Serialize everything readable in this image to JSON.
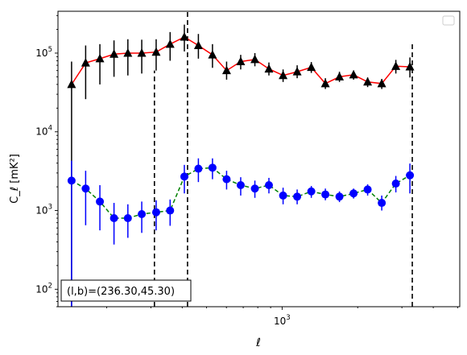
{
  "chart_data": {
    "type": "scatter",
    "xlabel": "ℓ",
    "ylabel": "C_ℓ  [mK²]",
    "xscale": "log",
    "yscale": "log",
    "xlim": [
      128,
      5100
    ],
    "ylim": [
      60,
      340000
    ],
    "x_major_ticks": [
      {
        "value": 1000,
        "base": "10",
        "exp": "3"
      }
    ],
    "y_major_ticks": [
      {
        "value": 100,
        "base": "10",
        "exp": "2"
      },
      {
        "value": 1000,
        "base": "10",
        "exp": "3"
      },
      {
        "value": 10000,
        "base": "10",
        "exp": "4"
      },
      {
        "value": 100000,
        "base": "10",
        "exp": "5"
      }
    ],
    "vertical_lines": [
      {
        "x": 310,
        "y_top": 60000
      },
      {
        "x": 420,
        "y_top": 340000
      },
      {
        "x": 3300,
        "y_top": 140000
      }
    ],
    "series": [
      {
        "marker": "triangle",
        "marker_color": "#000000",
        "line_color": "#ff0000",
        "line_style": "solid",
        "errorbar_color": "#000000",
        "points": [
          {
            "x": 145,
            "y": 40000,
            "lo": 60,
            "hi": 78000
          },
          {
            "x": 165,
            "y": 75000,
            "lo": 26000,
            "hi": 125000
          },
          {
            "x": 188,
            "y": 85000,
            "lo": 40000,
            "hi": 130000
          },
          {
            "x": 214,
            "y": 97000,
            "lo": 50000,
            "hi": 145000
          },
          {
            "x": 243,
            "y": 100000,
            "lo": 52000,
            "hi": 150000
          },
          {
            "x": 276,
            "y": 100000,
            "lo": 55000,
            "hi": 148000
          },
          {
            "x": 315,
            "y": 103000,
            "lo": 60000,
            "hi": 150000
          },
          {
            "x": 358,
            "y": 130000,
            "lo": 80000,
            "hi": 185000
          },
          {
            "x": 408,
            "y": 160000,
            "lo": 105000,
            "hi": 230000
          },
          {
            "x": 464,
            "y": 125000,
            "lo": 85000,
            "hi": 175000
          },
          {
            "x": 528,
            "y": 95000,
            "lo": 65000,
            "hi": 130000
          },
          {
            "x": 601,
            "y": 60000,
            "lo": 46000,
            "hi": 78000
          },
          {
            "x": 684,
            "y": 78000,
            "lo": 62000,
            "hi": 95000
          },
          {
            "x": 779,
            "y": 83000,
            "lo": 68000,
            "hi": 100000
          },
          {
            "x": 886,
            "y": 63000,
            "lo": 52000,
            "hi": 76000
          },
          {
            "x": 1009,
            "y": 52000,
            "lo": 43000,
            "hi": 62000
          },
          {
            "x": 1148,
            "y": 58000,
            "lo": 48000,
            "hi": 70000
          },
          {
            "x": 1307,
            "y": 66000,
            "lo": 56000,
            "hi": 77000
          },
          {
            "x": 1487,
            "y": 41000,
            "lo": 35000,
            "hi": 48000
          },
          {
            "x": 1692,
            "y": 50000,
            "lo": 43000,
            "hi": 58000
          },
          {
            "x": 1926,
            "y": 53000,
            "lo": 46000,
            "hi": 60000
          },
          {
            "x": 2191,
            "y": 43000,
            "lo": 37000,
            "hi": 49000
          },
          {
            "x": 2494,
            "y": 41000,
            "lo": 35000,
            "hi": 47000
          },
          {
            "x": 2838,
            "y": 68000,
            "lo": 55000,
            "hi": 82000
          },
          {
            "x": 3229,
            "y": 67000,
            "lo": 49000,
            "hi": 88000
          }
        ]
      },
      {
        "marker": "circle",
        "marker_color": "#0000ff",
        "line_color": "#008000",
        "line_style": "dashed",
        "errorbar_color": "#0000ff",
        "points": [
          {
            "x": 145,
            "y": 2400,
            "lo": 60,
            "hi": 4300
          },
          {
            "x": 165,
            "y": 1900,
            "lo": 650,
            "hi": 3200
          },
          {
            "x": 188,
            "y": 1300,
            "lo": 560,
            "hi": 2100
          },
          {
            "x": 214,
            "y": 800,
            "lo": 370,
            "hi": 1250
          },
          {
            "x": 243,
            "y": 800,
            "lo": 450,
            "hi": 1200
          },
          {
            "x": 276,
            "y": 900,
            "lo": 520,
            "hi": 1300
          },
          {
            "x": 315,
            "y": 950,
            "lo": 560,
            "hi": 1350
          },
          {
            "x": 358,
            "y": 1000,
            "lo": 640,
            "hi": 1380
          },
          {
            "x": 408,
            "y": 2700,
            "lo": 1650,
            "hi": 3800
          },
          {
            "x": 464,
            "y": 3400,
            "lo": 2300,
            "hi": 4600
          },
          {
            "x": 528,
            "y": 3500,
            "lo": 2500,
            "hi": 4600
          },
          {
            "x": 601,
            "y": 2500,
            "lo": 1850,
            "hi": 3200
          },
          {
            "x": 684,
            "y": 2100,
            "lo": 1550,
            "hi": 2650
          },
          {
            "x": 779,
            "y": 1900,
            "lo": 1450,
            "hi": 2400
          },
          {
            "x": 886,
            "y": 2100,
            "lo": 1650,
            "hi": 2600
          },
          {
            "x": 1009,
            "y": 1550,
            "lo": 1200,
            "hi": 1950
          },
          {
            "x": 1148,
            "y": 1500,
            "lo": 1200,
            "hi": 1850
          },
          {
            "x": 1307,
            "y": 1750,
            "lo": 1450,
            "hi": 2050
          },
          {
            "x": 1487,
            "y": 1600,
            "lo": 1350,
            "hi": 1900
          },
          {
            "x": 1692,
            "y": 1500,
            "lo": 1280,
            "hi": 1750
          },
          {
            "x": 1926,
            "y": 1650,
            "lo": 1420,
            "hi": 1900
          },
          {
            "x": 2191,
            "y": 1850,
            "lo": 1550,
            "hi": 2150
          },
          {
            "x": 2494,
            "y": 1250,
            "lo": 1000,
            "hi": 1550
          },
          {
            "x": 2838,
            "y": 2200,
            "lo": 1700,
            "hi": 2750
          },
          {
            "x": 3229,
            "y": 2800,
            "lo": 1650,
            "hi": 3950
          }
        ]
      }
    ],
    "annotation": "(l,b)=(236.30,45.30)",
    "legend": {
      "location": "top-right",
      "entries": []
    }
  }
}
